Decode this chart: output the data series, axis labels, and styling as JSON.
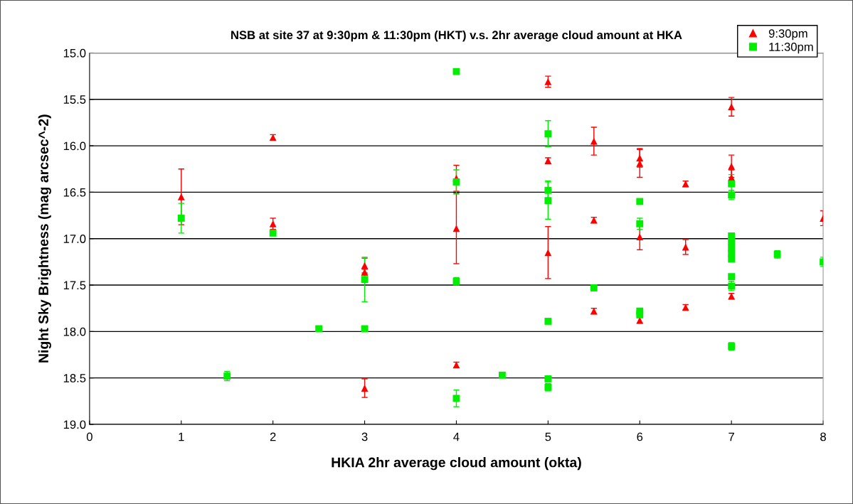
{
  "chart_data": {
    "type": "scatter",
    "title": "NSB at site 37 at 9:30pm & 11:30pm (HKT) v.s. 2hr average cloud amount at HKA",
    "xlabel": "HKIA 2hr average cloud amount (okta)",
    "ylabel": "Night Sky Brightness (mag arcsec^-2)",
    "xlim": [
      0,
      8
    ],
    "xticks": [
      0,
      1,
      2,
      3,
      4,
      5,
      6,
      7,
      8
    ],
    "ylim": [
      19.0,
      15.0
    ],
    "yticks": [
      {
        "value": 15,
        "label": "15.0"
      },
      {
        "value": 15.5,
        "label": "15.5"
      },
      {
        "value": 16,
        "label": "16.0"
      },
      {
        "value": 16.5,
        "label": "16.5"
      },
      {
        "value": 17,
        "label": "17.0"
      },
      {
        "value": 17.5,
        "label": "17.5"
      },
      {
        "value": 18,
        "label": "18.0"
      },
      {
        "value": 18.5,
        "label": "18.5"
      },
      {
        "value": 19,
        "label": "19.0"
      }
    ],
    "grid": "y",
    "legend": "top right",
    "series": [
      {
        "name": "9:30pm",
        "color": "#ff0000",
        "marker": "triangle",
        "x": [
          1,
          2,
          2,
          3,
          3,
          3,
          4,
          4,
          4,
          5,
          5,
          5,
          5.5,
          5.5,
          5.5,
          6,
          6,
          6,
          6,
          6.5,
          6.5,
          6.5,
          7,
          7,
          7,
          7,
          8
        ],
        "values": [
          16.55,
          15.91,
          16.84,
          17.29,
          17.36,
          18.61,
          16.35,
          16.89,
          18.36,
          15.31,
          16.16,
          17.15,
          15.95,
          16.8,
          17.78,
          16.13,
          16.19,
          16.98,
          17.88,
          16.41,
          17.09,
          17.74,
          15.58,
          16.22,
          16.34,
          17.62,
          16.78
        ],
        "errors": [
          0.3,
          0.03,
          0.06,
          0.08,
          0.03,
          0.1,
          0.14,
          0.38,
          0.03,
          0.06,
          0.03,
          0.28,
          0.15,
          0.03,
          0.03,
          0.1,
          0.15,
          0.14,
          0.03,
          0.03,
          0.08,
          0.03,
          0.1,
          0.12,
          0.08,
          0.03,
          0.08
        ]
      },
      {
        "name": "11:30pm",
        "color": "#00ee00",
        "marker": "square",
        "x": [
          1,
          1.5,
          2,
          2.5,
          3,
          3,
          4,
          4,
          4,
          4,
          4.5,
          5,
          5,
          5,
          5,
          5,
          5,
          5.5,
          6,
          6,
          6,
          6,
          7,
          7,
          7,
          7,
          7,
          7,
          7,
          7,
          7,
          7,
          7.5,
          8
        ],
        "values": [
          16.78,
          18.48,
          16.94,
          17.97,
          17.44,
          17.97,
          15.2,
          16.39,
          17.46,
          18.72,
          18.47,
          15.87,
          16.48,
          16.59,
          17.89,
          18.51,
          18.6,
          17.53,
          16.6,
          16.84,
          17.78,
          17.82,
          16.41,
          16.53,
          16.97,
          17.03,
          17.1,
          17.16,
          17.22,
          17.41,
          17.51,
          18.16,
          17.17,
          17.25
        ],
        "errors": [
          0.16,
          0.05,
          0.02,
          null,
          0.24,
          null,
          null,
          0.13,
          0.04,
          0.09,
          null,
          0.14,
          0.1,
          0.2,
          null,
          0.03,
          0.04,
          0.03,
          null,
          0.06,
          null,
          null,
          0.1,
          0.05,
          null,
          null,
          null,
          null,
          null,
          null,
          0.05,
          0.04,
          0.04,
          0.05
        ]
      }
    ]
  }
}
